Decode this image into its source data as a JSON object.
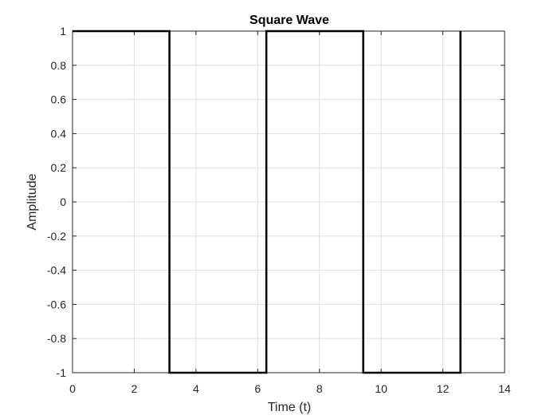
{
  "chart_data": {
    "type": "line",
    "title": "Square Wave",
    "xlabel": "Time (t)",
    "ylabel": "Amplitude",
    "xlim": [
      0,
      14
    ],
    "ylim": [
      -1,
      1
    ],
    "xticks": [
      0,
      2,
      4,
      6,
      8,
      10,
      12,
      14
    ],
    "yticks": [
      -1,
      -0.8,
      -0.6,
      -0.4,
      -0.2,
      0,
      0.2,
      0.4,
      0.6,
      0.8,
      1
    ],
    "grid": true,
    "series": [
      {
        "color": "#000000",
        "points": [
          [
            0,
            1
          ],
          [
            3.14,
            1
          ],
          [
            3.14,
            -1
          ],
          [
            6.28,
            -1
          ],
          [
            6.28,
            1
          ],
          [
            9.42,
            1
          ],
          [
            9.42,
            -1
          ],
          [
            12.57,
            -1
          ],
          [
            12.57,
            1
          ]
        ]
      }
    ],
    "colors": {
      "grid": "#dfdfdf",
      "axis": "#262626",
      "line": "#000000"
    }
  }
}
